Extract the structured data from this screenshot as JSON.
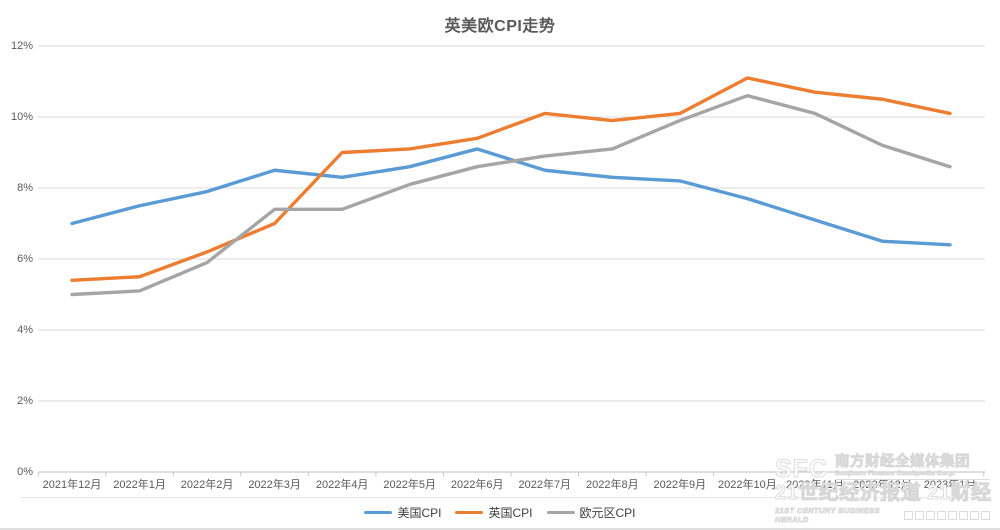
{
  "title": "英美欧CPI走势",
  "chart_data": {
    "type": "line",
    "title": "英美欧CPI走势",
    "categories": [
      "2021年12月",
      "2022年1月",
      "2022年2月",
      "2022年3月",
      "2022年4月",
      "2022年5月",
      "2022年6月",
      "2022年7月",
      "2022年8月",
      "2022年9月",
      "2022年10月",
      "2022年11月",
      "2022年12月",
      "2023年1月"
    ],
    "series": [
      {
        "name": "美国CPI",
        "color": "#5B9BD5",
        "values": [
          7.0,
          7.5,
          7.9,
          8.5,
          8.3,
          8.6,
          9.1,
          8.5,
          8.3,
          8.2,
          7.7,
          7.1,
          6.5,
          6.4
        ]
      },
      {
        "name": "英国CPI",
        "color": "#ED7D31",
        "values": [
          5.4,
          5.5,
          6.2,
          7.0,
          9.0,
          9.1,
          9.4,
          10.1,
          9.9,
          10.1,
          11.1,
          10.7,
          10.5,
          10.1
        ]
      },
      {
        "name": "欧元区CPI",
        "color": "#A5A5A5",
        "values": [
          5.0,
          5.1,
          5.9,
          7.4,
          7.4,
          8.1,
          8.6,
          8.9,
          9.1,
          9.9,
          10.6,
          10.1,
          9.2,
          8.6
        ]
      }
    ],
    "ylim": [
      0,
      12
    ],
    "ytick_step": 2,
    "ytick_labels": [
      "0%",
      "2%",
      "4%",
      "6%",
      "8%",
      "10%",
      "12%"
    ],
    "grid": "horizontal",
    "grid_color": "#dbdbdb",
    "axis_color": "#bdbdbd",
    "tick_color": "#c9c9c9",
    "legend_position": "bottom"
  },
  "watermark": {
    "logo_text": "SFC",
    "org_cn": "南方财经全媒体集团",
    "org_en": "Southern Finance Omnimedia Corp.",
    "brand_cn": "21世纪经济报道 21财经",
    "brand_en": "21ST CENTURY BUSINESS HERALD"
  }
}
